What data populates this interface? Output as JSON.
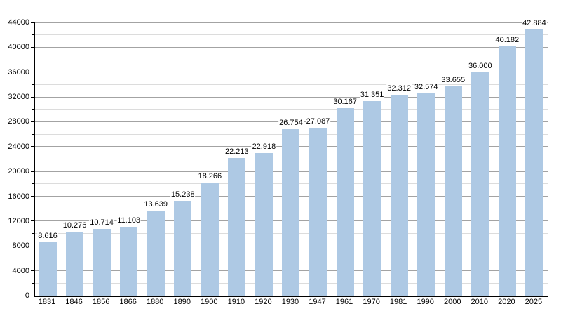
{
  "chart_data": {
    "type": "bar",
    "title": "",
    "xlabel": "",
    "ylabel": "",
    "categories": [
      "1831",
      "1846",
      "1856",
      "1866",
      "1880",
      "1890",
      "1900",
      "1910",
      "1920",
      "1930",
      "1947",
      "1961",
      "1970",
      "1981",
      "1990",
      "2000",
      "2010",
      "2020",
      "2025"
    ],
    "values": [
      8616,
      10276,
      10714,
      11103,
      13639,
      15238,
      18266,
      22213,
      22918,
      26754,
      27087,
      30167,
      31351,
      32312,
      32574,
      33655,
      36000,
      40182,
      42884
    ],
    "value_labels": [
      "8.616",
      "10.276",
      "10.714",
      "11.103",
      "13.639",
      "15.238",
      "18.266",
      "22.213",
      "22.918",
      "26.754",
      "27.087",
      "30.167",
      "31.351",
      "32.312",
      "32.574",
      "33.655",
      "36.000",
      "40.182",
      "42.884"
    ],
    "ylim": [
      0,
      44000
    ],
    "ytick_major": 4000,
    "ytick_minor": 2000,
    "y_tick_labels": [
      "0",
      "4000",
      "8000",
      "12000",
      "16000",
      "20000",
      "24000",
      "28000",
      "32000",
      "36000",
      "40000",
      "44000"
    ],
    "grid": "horizontal major+minor",
    "legend": "none",
    "colors": {
      "bar_fill": "#aec9e4",
      "major_grid": "#a3a3a3",
      "minor_grid": "#dcdcdc",
      "axis": "#000000",
      "text": "#000000",
      "background": "#ffffff"
    }
  }
}
